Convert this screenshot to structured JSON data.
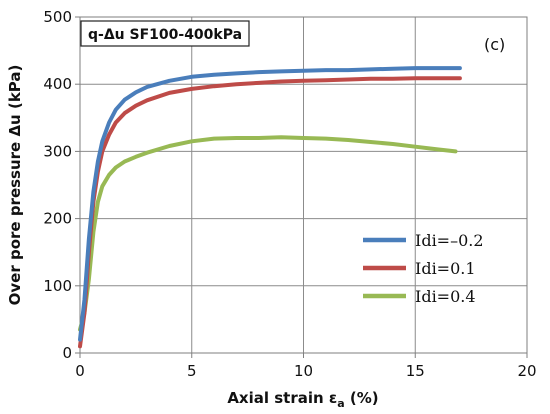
{
  "chart_data": {
    "type": "line",
    "title": "q-Δu SF100-400kPa",
    "panel_label": "(c)",
    "xlabel": "Axial strain ε",
    "xlabel_sub": "a",
    "xlabel_unit": " (%)",
    "ylabel": "Over pore pressure Δu (kPa)",
    "xlim": [
      0,
      20
    ],
    "ylim": [
      0,
      500
    ],
    "xticks": [
      0,
      5,
      10,
      15,
      20
    ],
    "yticks": [
      0,
      100,
      200,
      300,
      400,
      500
    ],
    "xtick_labels": [
      "0",
      "5",
      "10",
      "15",
      "20"
    ],
    "ytick_labels": [
      "0",
      "100",
      "200",
      "300",
      "400",
      "500"
    ],
    "grid": true,
    "legend_position": "lower-right",
    "series": [
      {
        "name": "Idi=–0.2",
        "color": "#4a7ebb",
        "x": [
          0,
          0.2,
          0.4,
          0.6,
          0.8,
          1.0,
          1.3,
          1.6,
          2.0,
          2.5,
          3.0,
          4.0,
          5.0,
          6.0,
          7.0,
          8.0,
          9.0,
          10.0,
          11.0,
          12.0,
          13.0,
          14.0,
          15.0,
          16.0,
          17.0
        ],
        "y": [
          20,
          80,
          170,
          240,
          285,
          315,
          343,
          362,
          377,
          388,
          396,
          405,
          411,
          414,
          416,
          418,
          419,
          420,
          421,
          421,
          422,
          423,
          424,
          424,
          424
        ]
      },
      {
        "name": "Idi=0.1",
        "color": "#be4b48",
        "x": [
          0,
          0.2,
          0.4,
          0.6,
          0.8,
          1.0,
          1.3,
          1.6,
          2.0,
          2.5,
          3.0,
          4.0,
          5.0,
          6.0,
          7.0,
          8.0,
          9.0,
          10.0,
          11.0,
          12.0,
          13.0,
          14.0,
          15.0,
          16.0,
          17.0
        ],
        "y": [
          10,
          60,
          150,
          225,
          270,
          300,
          325,
          343,
          357,
          368,
          376,
          387,
          393,
          397,
          400,
          402,
          404,
          405,
          406,
          407,
          408,
          408,
          409,
          409,
          409
        ]
      },
      {
        "name": "Idi=0.4",
        "color": "#98b954",
        "x": [
          0,
          0.2,
          0.4,
          0.6,
          0.8,
          1.0,
          1.3,
          1.6,
          2.0,
          2.5,
          3.0,
          4.0,
          5.0,
          6.0,
          7.0,
          8.0,
          9.0,
          10.0,
          11.0,
          12.0,
          13.0,
          14.0,
          15.0,
          16.0,
          16.8
        ],
        "y": [
          35,
          60,
          110,
          180,
          225,
          248,
          265,
          276,
          285,
          292,
          298,
          308,
          315,
          319,
          320,
          320,
          321,
          320,
          319,
          317,
          314,
          311,
          307,
          303,
          300
        ]
      }
    ]
  }
}
